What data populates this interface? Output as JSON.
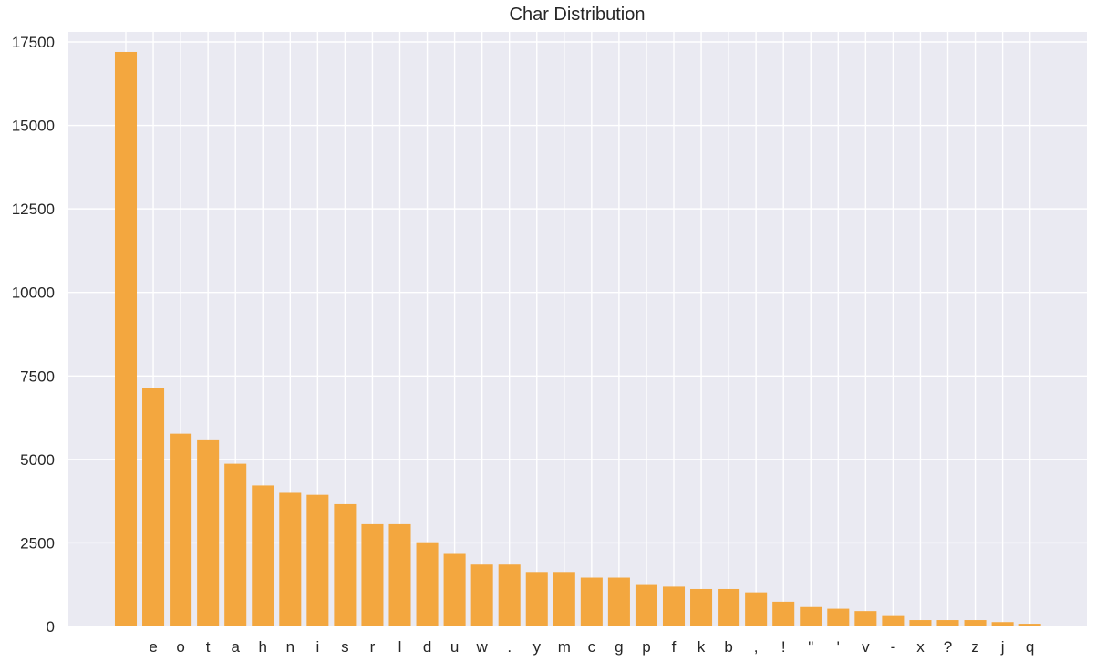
{
  "chart_data": {
    "type": "bar",
    "title": "Char Distribution",
    "xlabel": "",
    "ylabel": "",
    "categories": [
      " ",
      "e",
      "o",
      "t",
      "a",
      "h",
      "n",
      "i",
      "s",
      "r",
      "l",
      "d",
      "u",
      "w",
      ".",
      "y",
      "m",
      "c",
      "g",
      "p",
      "f",
      "k",
      "b",
      ",",
      "!",
      "\"",
      "'",
      "v",
      "-",
      "x",
      "?",
      "z",
      "j",
      "q"
    ],
    "values": [
      17200,
      7150,
      5770,
      5600,
      4870,
      4220,
      4000,
      3940,
      3660,
      3060,
      3060,
      2520,
      2170,
      1850,
      1850,
      1630,
      1630,
      1460,
      1460,
      1240,
      1190,
      1120,
      1120,
      1020,
      740,
      580,
      530,
      460,
      310,
      190,
      190,
      190,
      130,
      80
    ],
    "ylim": [
      0,
      17800
    ],
    "yticks": [
      0,
      2500,
      5000,
      7500,
      10000,
      12500,
      15000,
      17500
    ],
    "grid": true,
    "bar_color": "#f3a73f",
    "background_color": "#eaeaf2",
    "grid_color": "#ffffff"
  }
}
